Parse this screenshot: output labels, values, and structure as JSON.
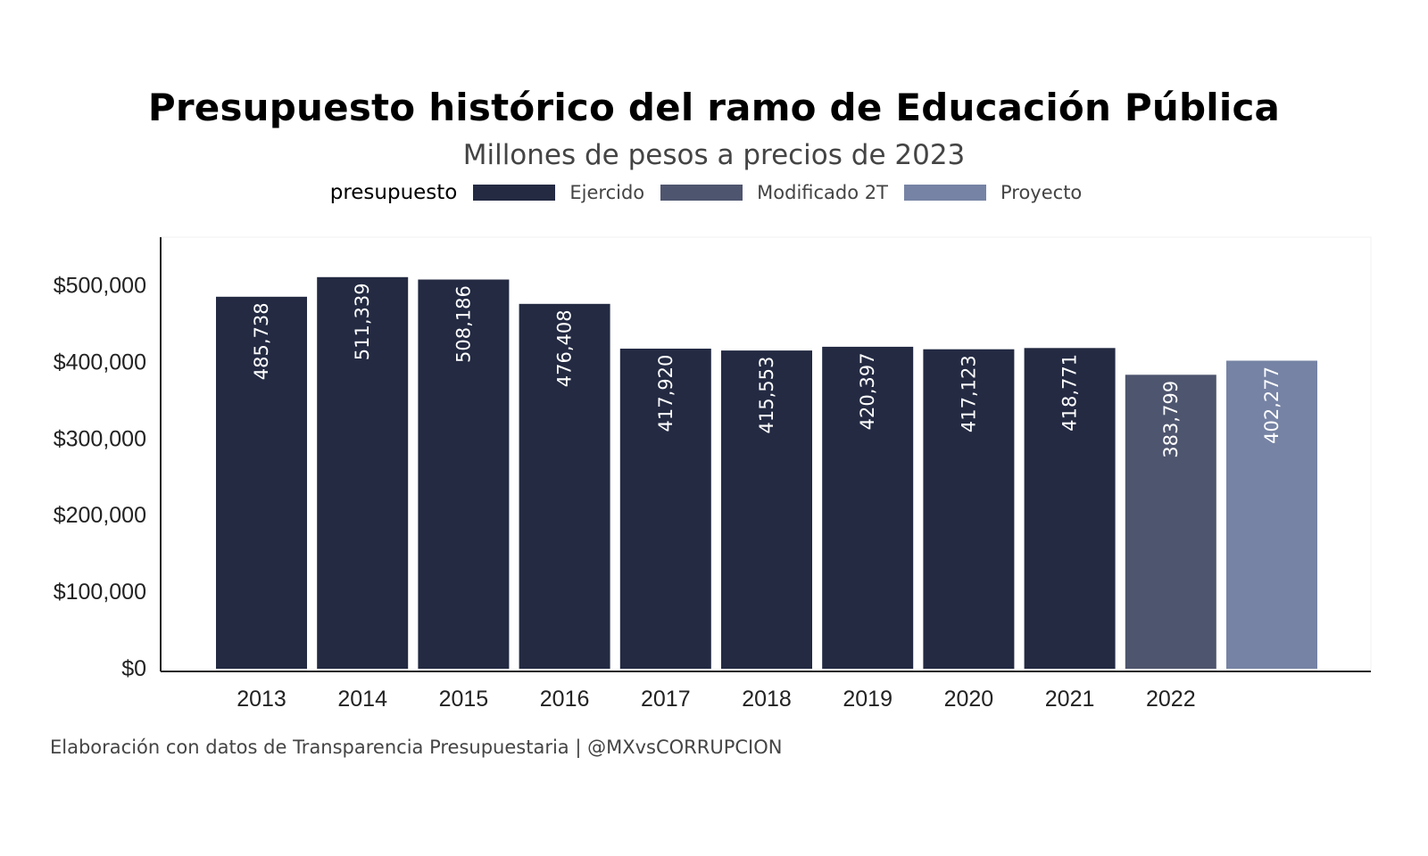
{
  "header": {
    "title": "Presupuesto histórico del ramo de Educación Pública",
    "subtitle": "Millones de pesos a precios de 2023"
  },
  "legend": {
    "title": "presupuesto",
    "items": [
      {
        "label": "Ejercido",
        "color": "#232a42"
      },
      {
        "label": "Modificado 2T",
        "color": "#4e556e"
      },
      {
        "label": "Proyecto",
        "color": "#7683a4"
      }
    ]
  },
  "caption": "Elaboración con datos de Transparencia Presupuestaria | @MXvsCORRUPCION",
  "chart_data": {
    "type": "bar",
    "title": "Presupuesto histórico del ramo de Educación Pública",
    "subtitle": "Millones de pesos a precios de 2023",
    "xlabel": "",
    "ylabel": "",
    "categories": [
      "2013",
      "2014",
      "2015",
      "2016",
      "2017",
      "2018",
      "2019",
      "2020",
      "2021",
      "2022",
      ""
    ],
    "values": [
      485738,
      511339,
      508186,
      476408,
      417920,
      415553,
      420397,
      417123,
      418771,
      383799,
      402277
    ],
    "value_labels": [
      "485,738",
      "511,339",
      "508,186",
      "476,408",
      "417,920",
      "415,553",
      "420,397",
      "417,123",
      "418,771",
      "383,799",
      "402,277"
    ],
    "groups": [
      "Ejercido",
      "Ejercido",
      "Ejercido",
      "Ejercido",
      "Ejercido",
      "Ejercido",
      "Ejercido",
      "Ejercido",
      "Ejercido",
      "Modificado 2T",
      "Proyecto"
    ],
    "ylim": [
      0,
      560000
    ],
    "yticks": [
      0,
      100000,
      200000,
      300000,
      400000,
      500000
    ],
    "ytick_labels": [
      "$0",
      "$100,000",
      "$200,000",
      "$300,000",
      "$400,000",
      "$500,000"
    ],
    "grid": false,
    "legend_position": "top"
  }
}
